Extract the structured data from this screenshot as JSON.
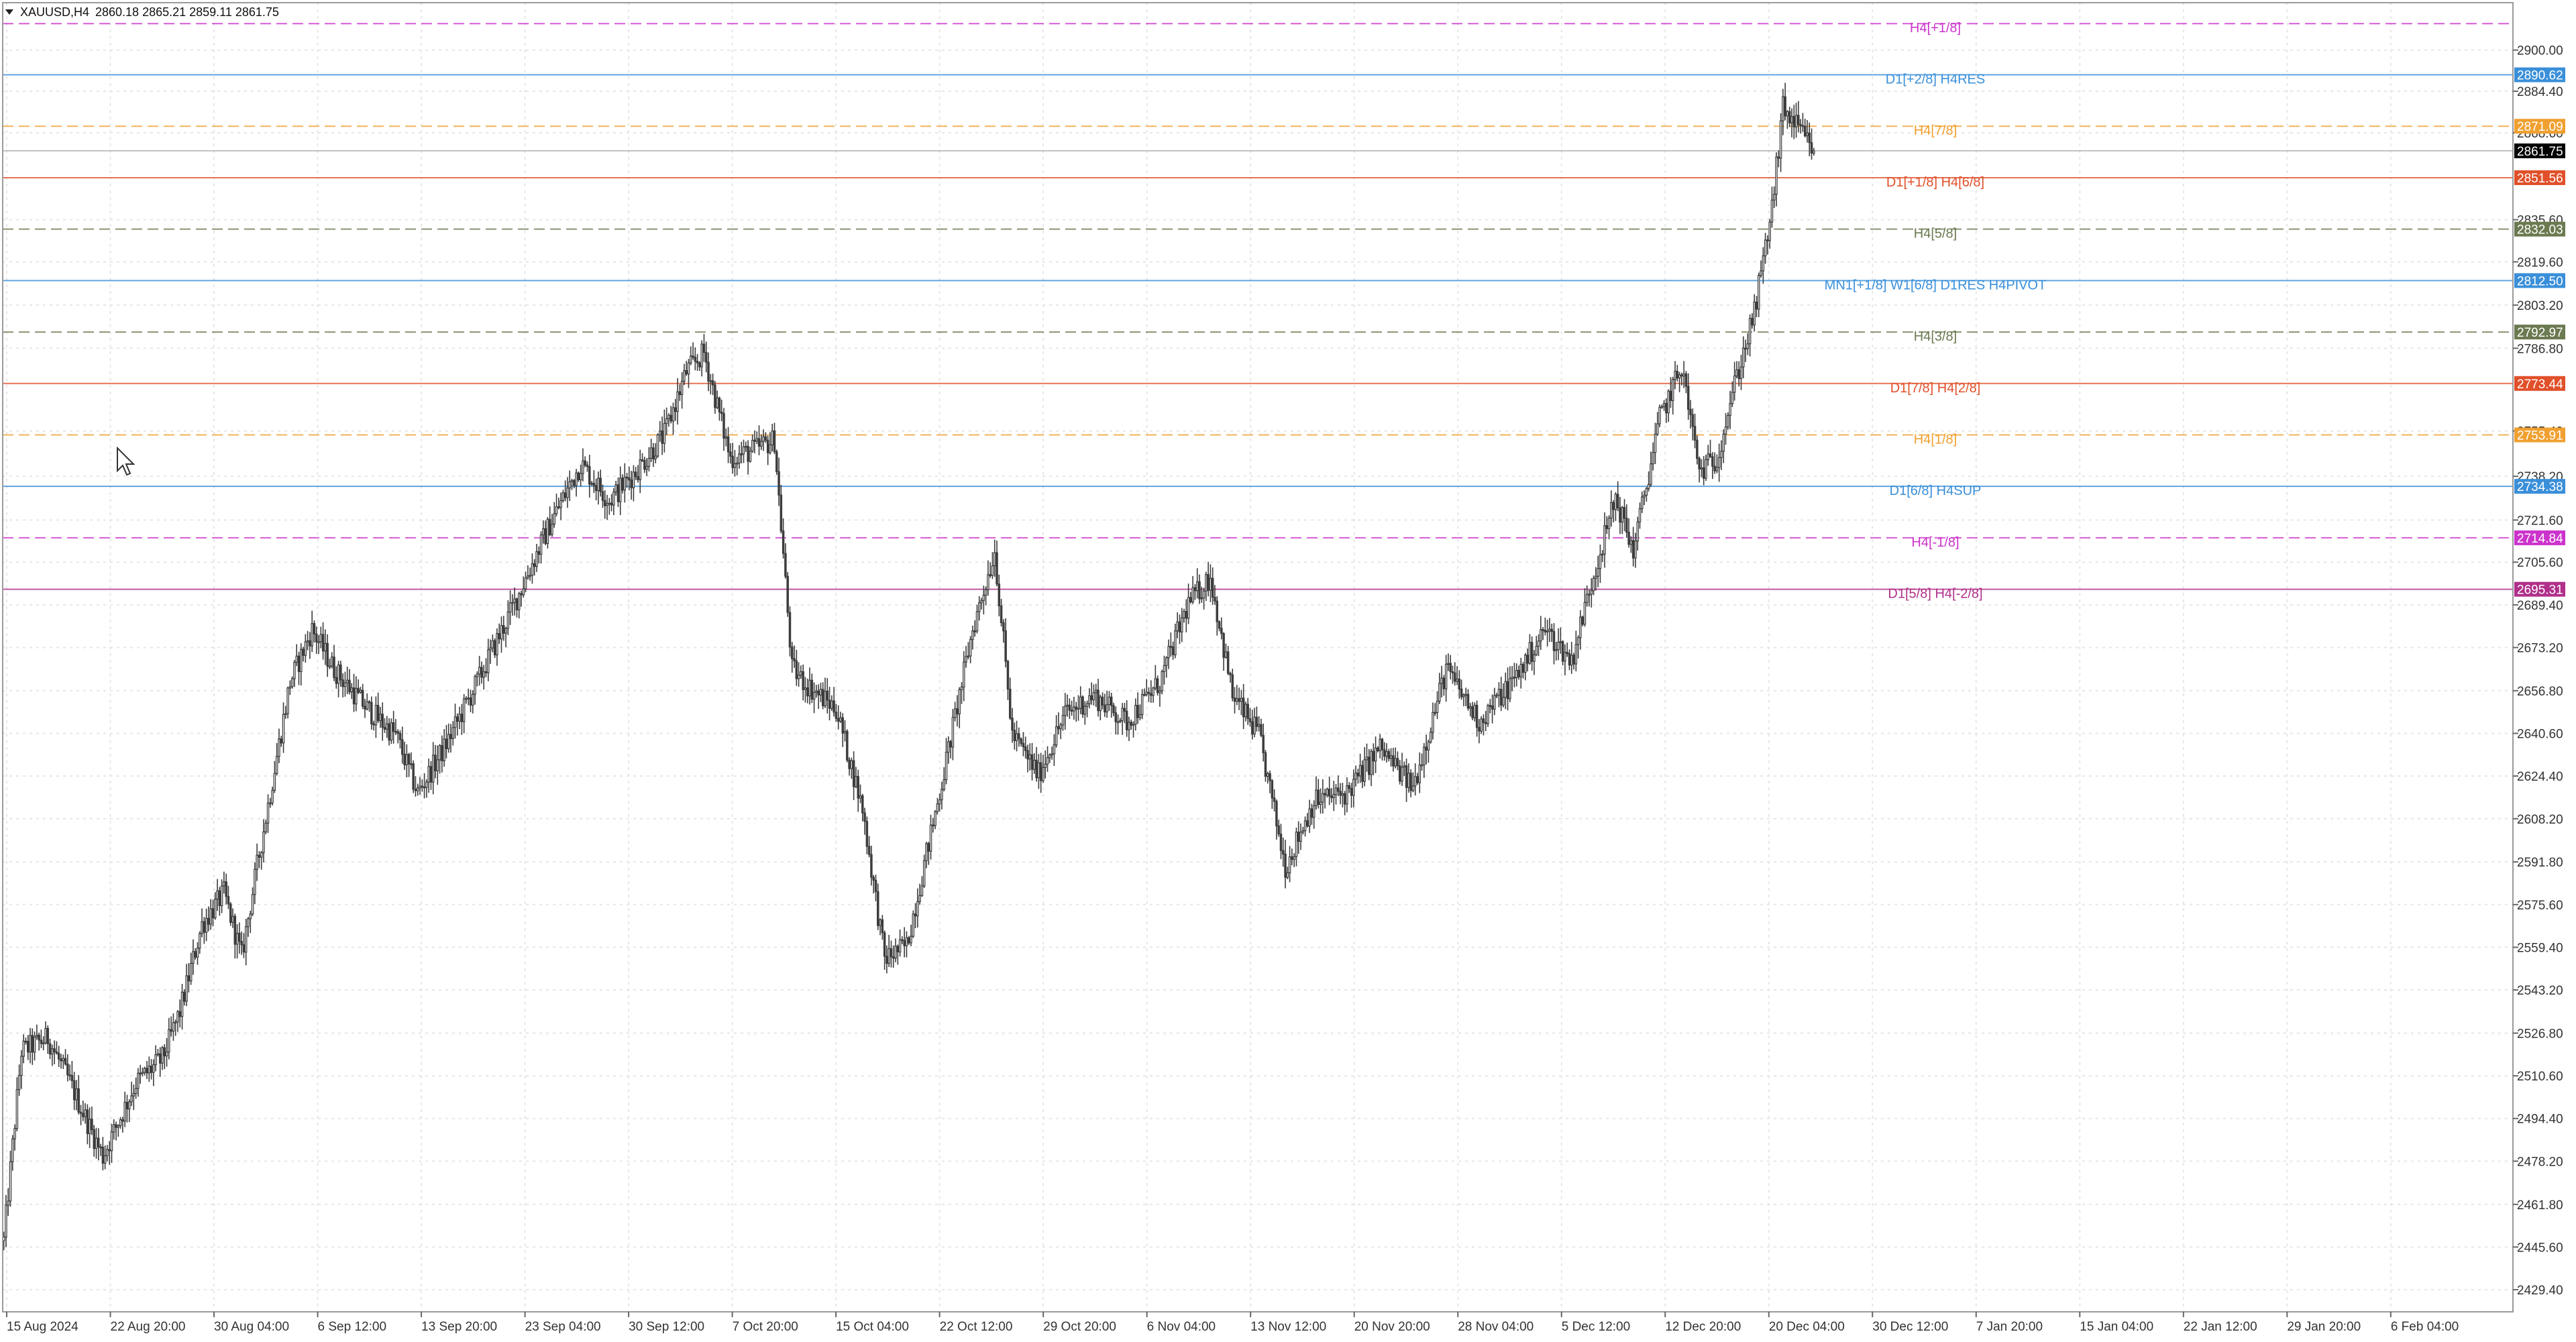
{
  "header": {
    "symbol_timeframe": "XAUUSD,H4",
    "ohlc": "2860.18 2865.21 2859.11 2861.75",
    "menu_icon": "triangle-down-icon"
  },
  "chart_data": {
    "type": "candlestick",
    "symbol": "XAUUSD",
    "timeframe": "H4",
    "last_price": "2861.75",
    "ylim": [
      2421,
      2918
    ],
    "y_ticks": [
      "2900.00",
      "2884.40",
      "2868.60",
      "2835.60",
      "2819.60",
      "2803.20",
      "2786.80",
      "2755.40",
      "2738.20",
      "2721.60",
      "2705.60",
      "2689.40",
      "2673.20",
      "2656.80",
      "2640.60",
      "2624.40",
      "2608.20",
      "2591.80",
      "2575.60",
      "2559.40",
      "2543.20",
      "2526.80",
      "2510.60",
      "2494.40",
      "2478.20",
      "2461.80",
      "2445.60",
      "2429.40"
    ],
    "x_labels": [
      "15 Aug 2024",
      "22 Aug 20:00",
      "30 Aug 04:00",
      "6 Sep 12:00",
      "13 Sep 20:00",
      "23 Sep 04:00",
      "30 Sep 12:00",
      "7 Oct 20:00",
      "15 Oct 04:00",
      "22 Oct 12:00",
      "29 Oct 20:00",
      "6 Nov 04:00",
      "13 Nov 12:00",
      "20 Nov 20:00",
      "28 Nov 04:00",
      "5 Dec 12:00",
      "12 Dec 20:00",
      "20 Dec 04:00",
      "30 Dec 12:00",
      "7 Jan 20:00",
      "15 Jan 04:00",
      "22 Jan 12:00",
      "29 Jan 20:00",
      "6 Feb 04:00"
    ],
    "price_path_anchors": [
      [
        0,
        2448
      ],
      [
        8,
        2520
      ],
      [
        20,
        2525
      ],
      [
        30,
        2508
      ],
      [
        45,
        2480
      ],
      [
        60,
        2508
      ],
      [
        72,
        2517
      ],
      [
        80,
        2535
      ],
      [
        90,
        2568
      ],
      [
        100,
        2580
      ],
      [
        108,
        2556
      ],
      [
        115,
        2590
      ],
      [
        130,
        2660
      ],
      [
        140,
        2680
      ],
      [
        150,
        2665
      ],
      [
        165,
        2650
      ],
      [
        178,
        2640
      ],
      [
        188,
        2618
      ],
      [
        200,
        2635
      ],
      [
        215,
        2660
      ],
      [
        232,
        2690
      ],
      [
        248,
        2720
      ],
      [
        262,
        2743
      ],
      [
        275,
        2729
      ],
      [
        287,
        2740
      ],
      [
        300,
        2754
      ],
      [
        310,
        2778
      ],
      [
        318,
        2785
      ],
      [
        330,
        2745
      ],
      [
        340,
        2748
      ],
      [
        350,
        2752
      ],
      [
        358,
        2665
      ],
      [
        366,
        2658
      ],
      [
        378,
        2650
      ],
      [
        390,
        2612
      ],
      [
        400,
        2555
      ],
      [
        410,
        2560
      ],
      [
        425,
        2618
      ],
      [
        440,
        2680
      ],
      [
        450,
        2710
      ],
      [
        458,
        2640
      ],
      [
        470,
        2625
      ],
      [
        482,
        2648
      ],
      [
        495,
        2655
      ],
      [
        510,
        2645
      ],
      [
        525,
        2660
      ],
      [
        538,
        2690
      ],
      [
        548,
        2700
      ],
      [
        558,
        2655
      ],
      [
        570,
        2640
      ],
      [
        582,
        2590
      ],
      [
        595,
        2615
      ],
      [
        610,
        2618
      ],
      [
        625,
        2635
      ],
      [
        640,
        2620
      ],
      [
        655,
        2665
      ],
      [
        670,
        2645
      ],
      [
        685,
        2660
      ],
      [
        700,
        2680
      ],
      [
        712,
        2668
      ],
      [
        720,
        2695
      ],
      [
        732,
        2730
      ],
      [
        740,
        2710
      ],
      [
        752,
        2760
      ],
      [
        762,
        2780
      ],
      [
        770,
        2740
      ],
      [
        778,
        2745
      ],
      [
        785,
        2770
      ],
      [
        795,
        2800
      ],
      [
        803,
        2840
      ],
      [
        808,
        2878
      ],
      [
        815,
        2870
      ],
      [
        822,
        2861.75
      ]
    ],
    "price_levels": [
      {
        "label": "H4[+1/8]",
        "value": "2910.05",
        "color": "#cc33cc",
        "style": "dashed",
        "badge_shown": false
      },
      {
        "label": "D1[+2/8] H4RES",
        "value": "2890.62",
        "color": "#3a8fd9",
        "style": "solid",
        "badge_shown": true
      },
      {
        "label": "H4[7/8]",
        "value": "2871.09",
        "color": "#f0a030",
        "style": "dashed",
        "badge_shown": true
      },
      {
        "label": "D1[+1/8] H4[6/8]",
        "value": "2851.56",
        "color": "#e0502a",
        "style": "solid",
        "badge_shown": true
      },
      {
        "label": "H4[5/8]",
        "value": "2832.03",
        "color": "#6b7a50",
        "style": "dashed",
        "badge_shown": true
      },
      {
        "label": "MN1[+1/8] W1[6/8] D1RES H4PIVOT",
        "value": "2812.50",
        "color": "#3a8fd9",
        "style": "solid",
        "badge_shown": true
      },
      {
        "label": "H4[3/8]",
        "value": "2792.97",
        "color": "#6b7a50",
        "style": "dashed",
        "badge_shown": true
      },
      {
        "label": "D1[7/8] H4[2/8]",
        "value": "2773.44",
        "color": "#e0502a",
        "style": "solid",
        "badge_shown": true
      },
      {
        "label": "H4[1/8]",
        "value": "2753.91",
        "color": "#f0a030",
        "style": "dashed",
        "badge_shown": true
      },
      {
        "label": "D1[6/8] H4SUP",
        "value": "2734.38",
        "color": "#3a8fd9",
        "style": "solid",
        "badge_shown": true
      },
      {
        "label": "H4[-1/8]",
        "value": "2714.84",
        "color": "#cc33cc",
        "style": "dashed",
        "badge_shown": true
      },
      {
        "label": "D1[5/8] H4[-2/8]",
        "value": "2695.31",
        "color": "#b0308a",
        "style": "solid",
        "badge_shown": true
      }
    ],
    "grid": true
  },
  "colors": {
    "background": "#ffffff",
    "grid": "#e6e6e6",
    "candle": "#3c3c3c",
    "axis_text": "#333333",
    "last_price_badge": "#000000"
  }
}
